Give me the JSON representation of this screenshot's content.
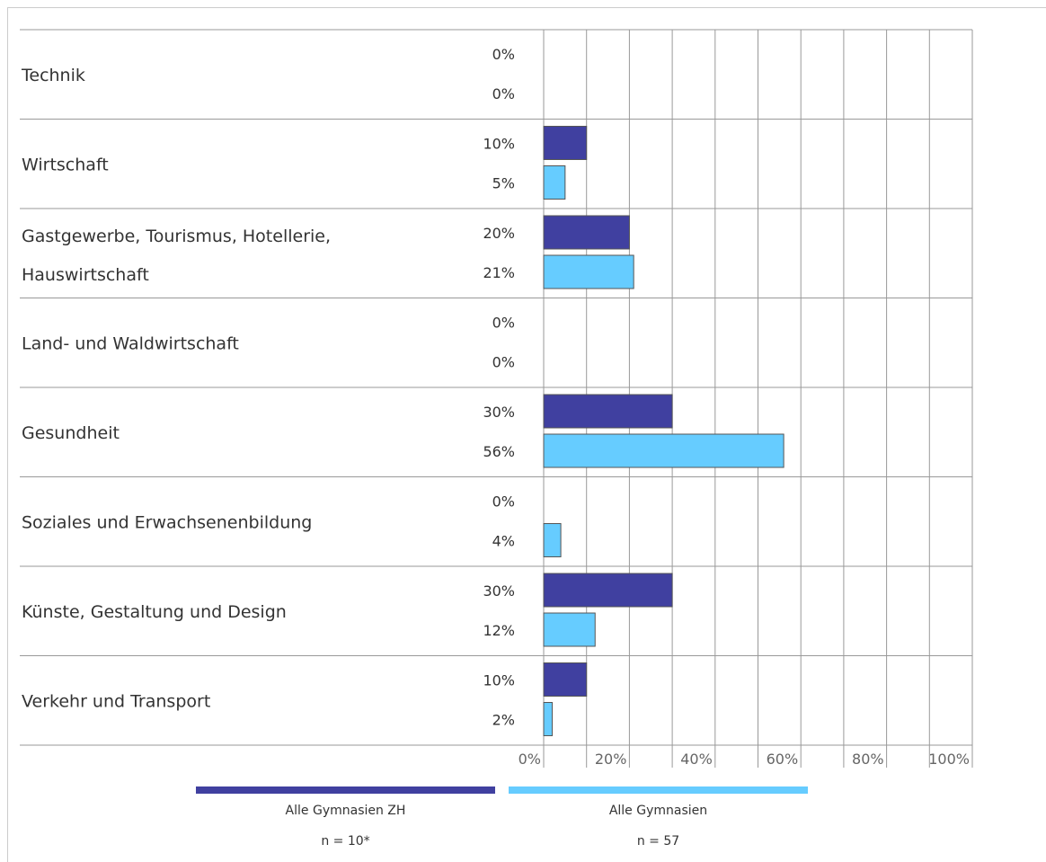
{
  "chart_data": {
    "type": "bar",
    "orientation": "horizontal",
    "categories": [
      [
        "Technik"
      ],
      [
        "Wirtschaft"
      ],
      [
        "Gastgewerbe, Tourismus, Hotellerie,",
        "Hauswirtschaft"
      ],
      [
        "Land- und Waldwirtschaft"
      ],
      [
        "Gesundheit"
      ],
      [
        "Soziales und Erwachsenenbildung"
      ],
      [
        "Künste, Gestaltung und Design"
      ],
      [
        "Verkehr und Transport"
      ]
    ],
    "series": [
      {
        "name": "Alle Gymnasien ZH",
        "note": "n = 10*",
        "color": "#4040a0",
        "values": [
          0,
          10,
          20,
          0,
          30,
          0,
          30,
          10
        ]
      },
      {
        "name": "Alle Gymnasien",
        "note": "n = 57",
        "color": "#66ccff",
        "values": [
          0,
          5,
          21,
          0,
          56,
          4,
          12,
          2
        ]
      }
    ],
    "xlim": [
      0,
      100
    ],
    "ticks": [
      "0%",
      "20%",
      "40%",
      "60%",
      "80%",
      "100%"
    ],
    "grid": true,
    "legend_position": "bottom"
  }
}
